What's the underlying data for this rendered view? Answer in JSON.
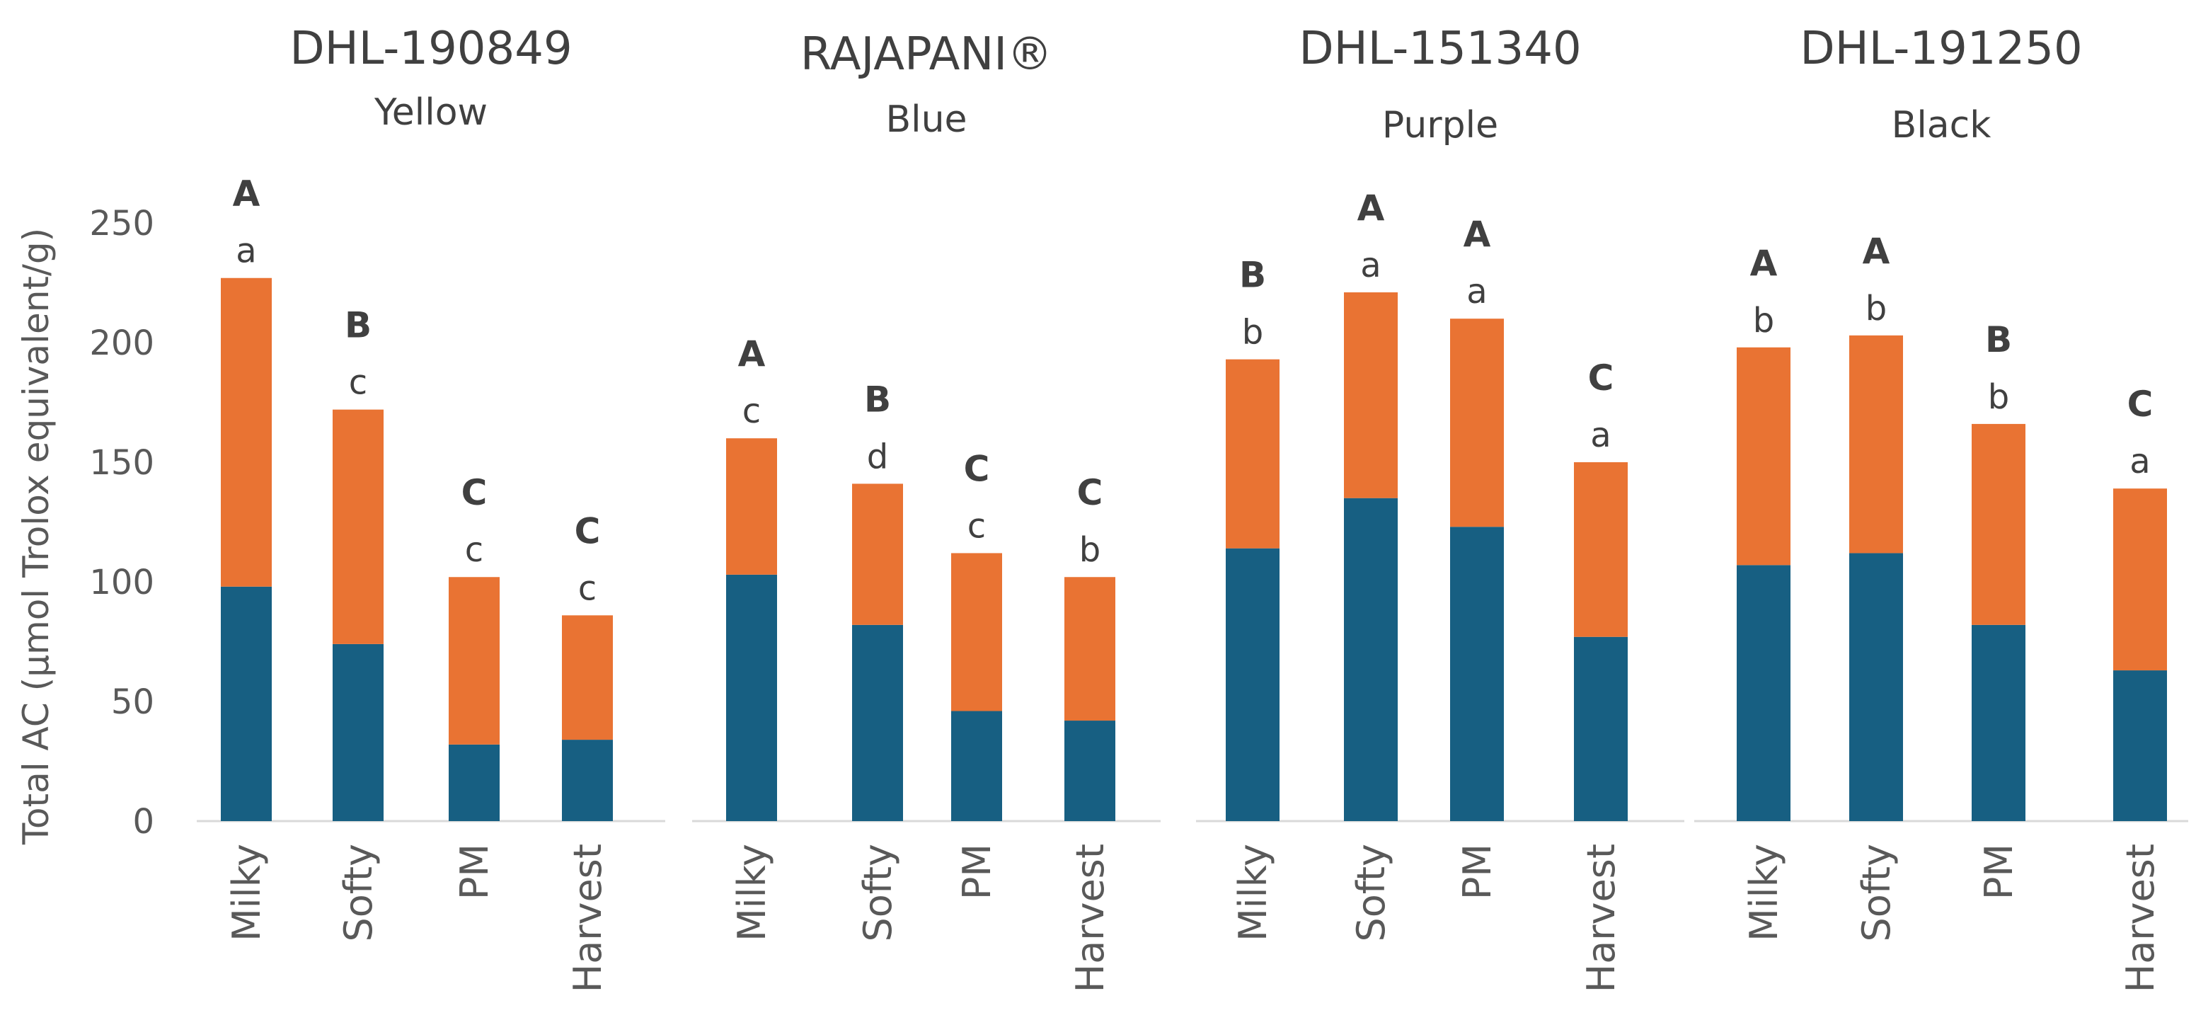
{
  "chart_data": {
    "type": "bar",
    "stacked": true,
    "ylabel": "Total AC (µmol Trolox equivalent/g)",
    "ylim": [
      0,
      250
    ],
    "yticks": [
      0,
      50,
      100,
      150,
      200,
      250
    ],
    "colors": {
      "bottom": "#175f82",
      "top": "#e97333",
      "axis": "#d9d9d9"
    },
    "series_names": [
      "bottom",
      "top"
    ],
    "groups": [
      {
        "title": "DHL-190849",
        "subtitle": "Yellow",
        "categories": [
          "Milky",
          "Softy",
          "PM",
          "Harvest"
        ],
        "bottom": [
          98,
          74,
          32,
          34
        ],
        "total": [
          227,
          172,
          102,
          86
        ],
        "upper_letters": [
          "A",
          "B",
          "C",
          "C"
        ],
        "lower_letters": [
          "a",
          "c",
          "c",
          "c"
        ]
      },
      {
        "title": "RAJAPANI®",
        "subtitle": "Blue",
        "categories": [
          "Milky",
          "Softy",
          "PM",
          "Harvest"
        ],
        "bottom": [
          103,
          82,
          46,
          42
        ],
        "total": [
          160,
          141,
          112,
          102
        ],
        "upper_letters": [
          "A",
          "B",
          "C",
          "C"
        ],
        "lower_letters": [
          "c",
          "d",
          "c",
          "b"
        ]
      },
      {
        "title": "DHL-151340",
        "subtitle": "Purple",
        "categories": [
          "Milky",
          "Softy",
          "PM",
          "Harvest"
        ],
        "bottom": [
          114,
          135,
          123,
          77
        ],
        "total": [
          193,
          221,
          210,
          150
        ],
        "upper_letters": [
          "B",
          "A",
          "A",
          "C"
        ],
        "lower_letters": [
          "b",
          "a",
          "a",
          "a"
        ]
      },
      {
        "title": "DHL-191250",
        "subtitle": "Black",
        "categories": [
          "Milky",
          "Softy",
          "PM",
          "Harvest"
        ],
        "bottom": [
          107,
          112,
          82,
          63
        ],
        "total": [
          198,
          203,
          166,
          139
        ],
        "upper_letters": [
          "A",
          "A",
          "B",
          "C"
        ],
        "lower_letters": [
          "b",
          "b",
          "b",
          "a"
        ]
      }
    ]
  }
}
